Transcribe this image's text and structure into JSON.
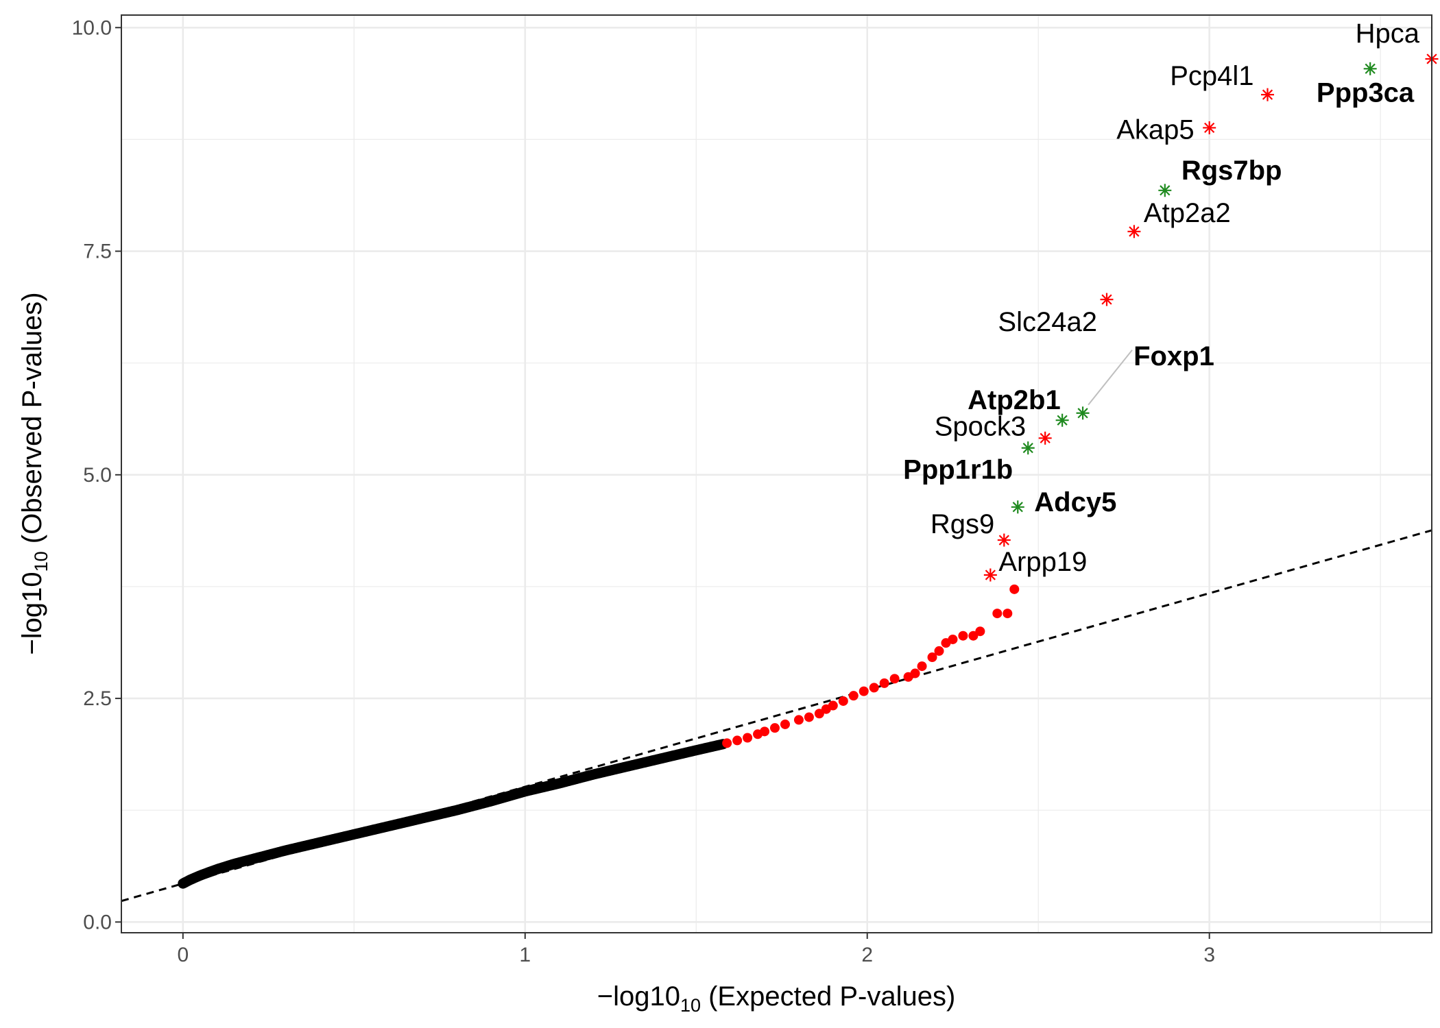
{
  "chart_data": {
    "type": "scatter",
    "xlabel_prefix": "−log10",
    "xlabel_sub": "10",
    "xlabel_suffix": " (Expected P-values)",
    "ylabel_prefix": "−log10",
    "ylabel_sub": "10",
    "ylabel_suffix": " (Observed P-values)",
    "xlim": [
      -0.18,
      3.65
    ],
    "ylim": [
      -0.12,
      10.14
    ],
    "x_ticks": [
      0,
      1,
      2,
      3
    ],
    "x_tick_labels": [
      "0",
      "1",
      "2",
      "3"
    ],
    "y_ticks": [
      0,
      2.5,
      5,
      7.5,
      10
    ],
    "y_tick_labels": [
      "0.0",
      "2.5",
      "5.0",
      "7.5",
      "10.0"
    ],
    "grid": true,
    "reference_line": {
      "intercept": 0.43,
      "slope": 1.082,
      "style": "dashed"
    },
    "colors": {
      "background_points": "#000000",
      "highlight_points": "#ff0000",
      "red_genes": "#ff0000",
      "green_genes": "#1f8a1f",
      "reference_line": "#000000",
      "grid": "#ebebeb",
      "panel_border": "#333333"
    },
    "point_curve": [
      [
        0.0,
        0.43
      ],
      [
        0.02,
        0.47
      ],
      [
        0.05,
        0.52
      ],
      [
        0.1,
        0.59
      ],
      [
        0.15,
        0.65
      ],
      [
        0.2,
        0.7
      ],
      [
        0.25,
        0.75
      ],
      [
        0.3,
        0.8
      ],
      [
        0.4,
        0.89
      ],
      [
        0.5,
        0.98
      ],
      [
        0.6,
        1.07
      ],
      [
        0.7,
        1.16
      ],
      [
        0.8,
        1.25
      ],
      [
        0.9,
        1.35
      ],
      [
        1.0,
        1.46
      ],
      [
        1.1,
        1.55
      ],
      [
        1.2,
        1.65
      ],
      [
        1.3,
        1.74
      ],
      [
        1.4,
        1.83
      ],
      [
        1.5,
        1.92
      ],
      [
        1.58,
        1.99
      ]
    ],
    "highlight_points": [
      [
        1.59,
        2.0
      ],
      [
        1.62,
        2.03
      ],
      [
        1.65,
        2.06
      ],
      [
        1.68,
        2.1
      ],
      [
        1.7,
        2.13
      ],
      [
        1.73,
        2.17
      ],
      [
        1.76,
        2.21
      ],
      [
        1.8,
        2.26
      ],
      [
        1.83,
        2.29
      ],
      [
        1.86,
        2.33
      ],
      [
        1.88,
        2.38
      ],
      [
        1.9,
        2.42
      ],
      [
        1.93,
        2.47
      ],
      [
        1.96,
        2.53
      ],
      [
        1.99,
        2.58
      ],
      [
        2.02,
        2.62
      ],
      [
        2.05,
        2.67
      ],
      [
        2.08,
        2.72
      ],
      [
        2.12,
        2.74
      ],
      [
        2.14,
        2.78
      ],
      [
        2.16,
        2.86
      ],
      [
        2.19,
        2.96
      ],
      [
        2.21,
        3.03
      ],
      [
        2.23,
        3.12
      ],
      [
        2.25,
        3.16
      ],
      [
        2.28,
        3.2
      ],
      [
        2.31,
        3.2
      ],
      [
        2.33,
        3.25
      ],
      [
        2.38,
        3.45
      ],
      [
        2.41,
        3.45
      ],
      [
        2.43,
        3.72
      ]
    ],
    "genes": [
      {
        "name": "Hpca",
        "x": 3.65,
        "y": 9.65,
        "color": "red",
        "bold": false
      },
      {
        "name": "Ppp3ca",
        "x": 3.47,
        "y": 9.54,
        "color": "green",
        "bold": true
      },
      {
        "name": "Pcp4l1",
        "x": 3.17,
        "y": 9.25,
        "color": "red",
        "bold": false
      },
      {
        "name": "Akap5",
        "x": 3.0,
        "y": 8.88,
        "color": "red",
        "bold": false
      },
      {
        "name": "Rgs7bp",
        "x": 2.87,
        "y": 8.18,
        "color": "green",
        "bold": true
      },
      {
        "name": "Atp2a2",
        "x": 2.78,
        "y": 7.72,
        "color": "red",
        "bold": false
      },
      {
        "name": "Slc24a2",
        "x": 2.7,
        "y": 6.96,
        "color": "red",
        "bold": false
      },
      {
        "name": "Foxp1",
        "x": 2.63,
        "y": 5.69,
        "color": "green",
        "bold": true
      },
      {
        "name": "Atp2b1",
        "x": 2.57,
        "y": 5.61,
        "color": "green",
        "bold": true
      },
      {
        "name": "Spock3",
        "x": 2.52,
        "y": 5.41,
        "color": "red",
        "bold": false
      },
      {
        "name": "Ppp1r1b",
        "x": 2.47,
        "y": 5.3,
        "color": "green",
        "bold": true
      },
      {
        "name": "Adcy5",
        "x": 2.44,
        "y": 4.64,
        "color": "green",
        "bold": true
      },
      {
        "name": "Rgs9",
        "x": 2.4,
        "y": 4.27,
        "color": "red",
        "bold": false
      },
      {
        "name": "Arpp19",
        "x": 2.36,
        "y": 3.88,
        "color": "red",
        "bold": false
      }
    ]
  }
}
